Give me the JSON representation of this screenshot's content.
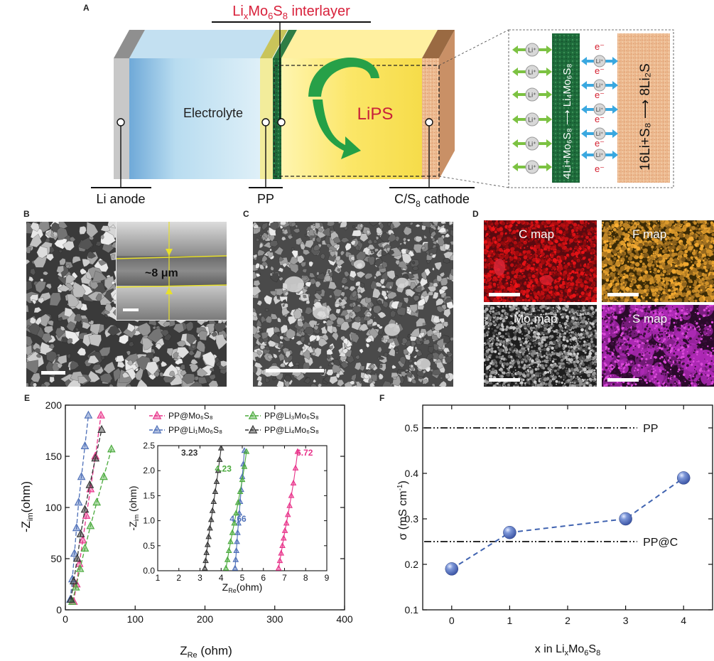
{
  "panel_letters": {
    "A": "A",
    "B": "B",
    "C": "C",
    "D": "D",
    "E": "E",
    "F": "F"
  },
  "colors": {
    "pp_mo6s8": "#e8338a",
    "pp_li1": "#4d6fb8",
    "pp_li3": "#4aaa3c",
    "pp_li4": "#333333",
    "marker_f": "#3d56a6"
  },
  "schematic": {
    "interlayer_prefix": "Li",
    "interlayer_sub_x": "x",
    "interlayer_mid": "Mo",
    "interlayer_sub_6": "6",
    "interlayer_s": "S",
    "interlayer_sub_8": "8",
    "interlayer_suffix": " interlayer",
    "electrolyte": "Electrolyte",
    "lips": "LiPS",
    "li_anode": "Li anode",
    "pp": "PP",
    "cathode_prefix": "C/S",
    "cathode_sub": "8",
    "cathode_suffix": " cathode",
    "li_ion": "Li⁺",
    "electron": "e⁻",
    "green_bar_text": "4Li+Mo₆S₈ ⟶ Li₄Mo₆S₈",
    "orange_bar_text": "16Li+S₈ ⟶ 8Li₂S"
  },
  "sem_b": {
    "thickness": "~8 μm"
  },
  "maps": {
    "c": "C map",
    "f": "F map",
    "mo": "Mo map",
    "s": "S map"
  },
  "chart_data": [
    {
      "panel": "E",
      "type": "scatter",
      "xlabel_main": "Z",
      "xlabel_sub": "Re",
      "xlabel_unit": " (ohm)",
      "ylabel_prefix": "-Z",
      "ylabel_sub": "im",
      "ylabel_unit": "(ohm)",
      "xlim": [
        0,
        400
      ],
      "ylim": [
        0,
        200
      ],
      "xticks": [
        "0",
        "100",
        "200",
        "300",
        "400"
      ],
      "yticks": [
        "0",
        "50",
        "100",
        "150",
        "200"
      ],
      "legend": [
        {
          "text": "PP@Mo₆S₈",
          "color": "#e8338a"
        },
        {
          "text": "PP@Li₃Mo₆S₈",
          "color": "#4aaa3c"
        },
        {
          "text": "PP@Li₁Mo₆S₈",
          "color": "#4d6fb8"
        },
        {
          "text": "PP@Li₄Mo₆S₈",
          "color": "#333333"
        }
      ],
      "series": [
        {
          "name": "PP@Mo₆S₈",
          "color": "#e8338a",
          "x": [
            12,
            16,
            20,
            25,
            30,
            36,
            43,
            51
          ],
          "y": [
            8,
            25,
            45,
            68,
            92,
            118,
            150,
            190
          ]
        },
        {
          "name": "PP@Li₁Mo₆S₈",
          "color": "#4d6fb8",
          "x": [
            7,
            10,
            13,
            16,
            19,
            23,
            28,
            33
          ],
          "y": [
            10,
            30,
            55,
            80,
            105,
            130,
            160,
            190
          ]
        },
        {
          "name": "PP@Li₃Mo₆S₈",
          "color": "#4aaa3c",
          "x": [
            10,
            15,
            21,
            28,
            36,
            45,
            55,
            66
          ],
          "y": [
            8,
            22,
            40,
            60,
            82,
            105,
            130,
            157
          ]
        },
        {
          "name": "PP@Li₄Mo₆S₈",
          "color": "#333333",
          "x": [
            8,
            12,
            17,
            22,
            28,
            35,
            43,
            52
          ],
          "y": [
            10,
            28,
            50,
            74,
            98,
            122,
            148,
            176
          ]
        }
      ],
      "inset": {
        "xlabel_main": "Z",
        "xlabel_sub": "Re",
        "xlabel_unit": "(ohm)",
        "ylabel_prefix": "-Z",
        "ylabel_sub": "im",
        "ylabel_unit": " (ohm)",
        "xlim": [
          1,
          9
        ],
        "ylim": [
          0,
          2.5
        ],
        "xticks": [
          "1",
          "2",
          "3",
          "4",
          "5",
          "6",
          "7",
          "8",
          "9"
        ],
        "yticks": [
          "0.0",
          "0.5",
          "1.0",
          "1.5",
          "2.0",
          "2.5"
        ],
        "annotations": [
          {
            "text": "3.23",
            "color": "#333333",
            "x": 2.5,
            "y": 2.3
          },
          {
            "text": "4.23",
            "color": "#4aaa3c",
            "x": 4.1,
            "y": 1.98
          },
          {
            "text": "4.66",
            "color": "#4d6fb8",
            "x": 4.8,
            "y": 0.98
          },
          {
            "text": "6.72",
            "color": "#e8338a",
            "x": 7.95,
            "y": 2.3
          }
        ],
        "series": [
          {
            "name": "PP@Mo₆S₈",
            "color": "#e8338a",
            "x": [
              6.72,
              6.78,
              6.84,
              6.9,
              6.96,
              7.02,
              7.09,
              7.16,
              7.24,
              7.32,
              7.42,
              7.52,
              7.62
            ],
            "y": [
              0.05,
              0.2,
              0.35,
              0.5,
              0.65,
              0.8,
              0.95,
              1.12,
              1.3,
              1.5,
              1.75,
              2.05,
              2.38
            ]
          },
          {
            "name": "PP@Li₁Mo₆S₈",
            "color": "#4d6fb8",
            "x": [
              4.66,
              4.69,
              4.72,
              4.75,
              4.78,
              4.82,
              4.86,
              4.9,
              4.95,
              5.0,
              5.05,
              5.1
            ],
            "y": [
              0.05,
              0.22,
              0.4,
              0.58,
              0.76,
              0.95,
              1.15,
              1.38,
              1.62,
              1.88,
              2.13,
              2.4
            ]
          },
          {
            "name": "PP@Li₃Mo₆S₈",
            "color": "#4aaa3c",
            "x": [
              4.23,
              4.3,
              4.37,
              4.45,
              4.53,
              4.62,
              4.71,
              4.8,
              4.9,
              5.0,
              5.1,
              5.2
            ],
            "y": [
              0.05,
              0.22,
              0.4,
              0.58,
              0.76,
              0.95,
              1.15,
              1.36,
              1.58,
              1.82,
              2.08,
              2.38
            ]
          },
          {
            "name": "PP@Li₄Mo₆S₈",
            "color": "#333333",
            "x": [
              3.23,
              3.27,
              3.31,
              3.36,
              3.41,
              3.47,
              3.53,
              3.59,
              3.65,
              3.72,
              3.79,
              3.86,
              3.93,
              4.0
            ],
            "y": [
              0.05,
              0.2,
              0.36,
              0.52,
              0.68,
              0.85,
              1.02,
              1.2,
              1.38,
              1.58,
              1.78,
              2.0,
              2.22,
              2.45
            ]
          }
        ]
      }
    },
    {
      "panel": "F",
      "type": "scatter",
      "xlabel_prefix": "x in Li",
      "xlabel_sub": "x",
      "xlabel_mid": "Mo",
      "xlabel_sub6": "6",
      "xlabel_s": "S",
      "xlabel_sub8": "8",
      "ylabel": "σ (mS  cm",
      "ylabel_sup": "-1",
      "ylabel_close": ")",
      "xlim": [
        -0.5,
        4.5
      ],
      "ylim": [
        0.1,
        0.55
      ],
      "xticks": [
        "0",
        "1",
        "2",
        "3",
        "4"
      ],
      "yticks": [
        "0.1",
        "0.2",
        "0.3",
        "0.4",
        "0.5"
      ],
      "x": [
        0,
        1,
        3,
        4
      ],
      "y": [
        0.19,
        0.27,
        0.3,
        0.39
      ],
      "reference_lines": [
        {
          "label": "PP",
          "y": 0.5
        },
        {
          "label": "PP@C",
          "y": 0.25
        }
      ]
    }
  ]
}
